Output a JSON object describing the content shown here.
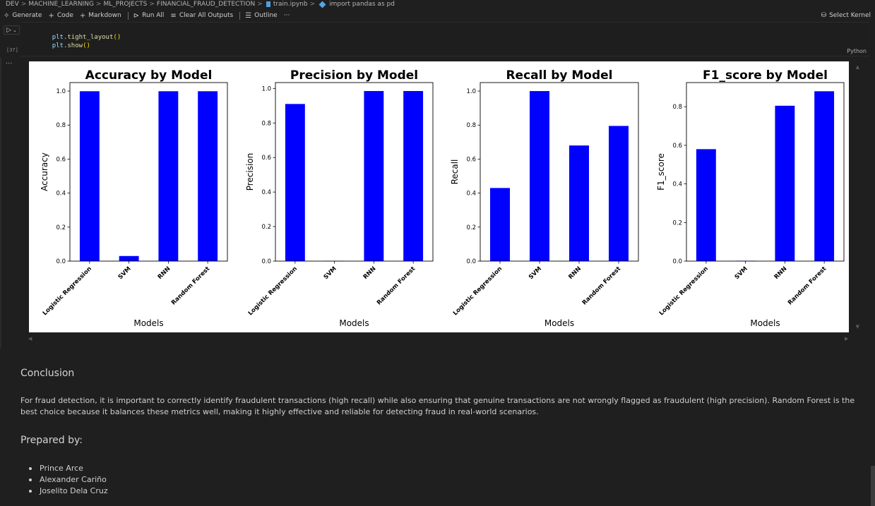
{
  "breadcrumb": {
    "items": [
      "DEV",
      "MACHINE_LEARNING",
      "ML_PROJECTS",
      "FINANCIAL_FRAUD_DETECTION",
      "train.ipynb",
      "import pandas as pd"
    ],
    "separator": ">"
  },
  "toolbar": {
    "generate": "Generate",
    "code": "Code",
    "markdown": "Markdown",
    "run_all": "Run All",
    "clear_outputs": "Clear All Outputs",
    "outline": "Outline",
    "more": "···",
    "select_kernel": "Select Kernel"
  },
  "cell": {
    "run_icon": "▷",
    "run_chevron": "⌄",
    "exec_count": "[37]",
    "code_lines": [
      "plt.tight_layout()",
      "plt.show()"
    ],
    "language": "Python",
    "output_more": "···"
  },
  "chart_data": [
    {
      "type": "bar",
      "title": "Accuracy by Model",
      "xlabel": "Models",
      "ylabel": "Accuracy",
      "categories": [
        "Logistic Regression",
        "SVM",
        "RNN",
        "Random Forest"
      ],
      "values": [
        0.999,
        0.03,
        0.999,
        0.999
      ],
      "ylim": [
        0,
        1.05
      ],
      "yticks": [
        "0.0",
        "0.2",
        "0.4",
        "0.6",
        "0.8",
        "1.0"
      ],
      "ytick_values": [
        0,
        0.2,
        0.4,
        0.6,
        0.8,
        1.0
      ],
      "color": "#0000ff"
    },
    {
      "type": "bar",
      "title": "Precision by Model",
      "xlabel": "Models",
      "ylabel": "Precision",
      "categories": [
        "Logistic Regression",
        "SVM",
        "RNN",
        "Random Forest"
      ],
      "values": [
        0.91,
        0.002,
        0.985,
        0.985
      ],
      "ylim": [
        0,
        1.034
      ],
      "yticks": [
        "0.0",
        "0.2",
        "0.4",
        "0.6",
        "0.8",
        "1.0"
      ],
      "ytick_values": [
        0,
        0.2,
        0.4,
        0.6,
        0.8,
        1.0
      ],
      "color": "#0000ff"
    },
    {
      "type": "bar",
      "title": "Recall by Model",
      "xlabel": "Models",
      "ylabel": "Recall",
      "categories": [
        "Logistic Regression",
        "SVM",
        "RNN",
        "Random Forest"
      ],
      "values": [
        0.43,
        1.0,
        0.68,
        0.795
      ],
      "ylim": [
        0,
        1.05
      ],
      "yticks": [
        "0.0",
        "0.2",
        "0.4",
        "0.6",
        "0.8",
        "1.0"
      ],
      "ytick_values": [
        0,
        0.2,
        0.4,
        0.6,
        0.8,
        1.0
      ],
      "color": "#0000ff"
    },
    {
      "type": "bar",
      "title": "F1_score by Model",
      "xlabel": "Models",
      "ylabel": "F1_score",
      "categories": [
        "Logistic Regression",
        "SVM",
        "RNN",
        "Random Forest"
      ],
      "values": [
        0.58,
        0.002,
        0.805,
        0.88
      ],
      "ylim": [
        0,
        0.925
      ],
      "yticks": [
        "0.0",
        "0.2",
        "0.4",
        "0.6",
        "0.8"
      ],
      "ytick_values": [
        0,
        0.2,
        0.4,
        0.6,
        0.8
      ],
      "color": "#0000ff"
    }
  ],
  "conclusion": {
    "heading": "Conclusion",
    "text": "For fraud detection, it is important to correctly identify fraudulent transactions (high recall) while also ensuring that genuine transactions are not wrongly flagged as fraudulent (high precision). Random Forest is the best choice because it balances these metrics well, making it highly effective and reliable for detecting fraud in real-world scenarios."
  },
  "prepared": {
    "heading": "Prepared by:",
    "names": [
      "Prince Arce",
      "Alexander Cariño",
      "Joselito Dela Cruz"
    ]
  }
}
